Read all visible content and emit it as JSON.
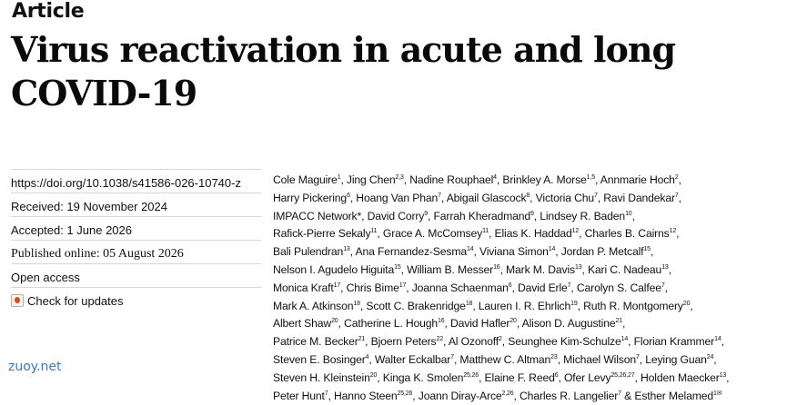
{
  "article_label": "Article",
  "title": "Virus reactivation in acute and long COVID-19",
  "meta": {
    "doi": "https://doi.org/10.1038/s41586-026-10740-z",
    "received": "Received: 19 November 2024",
    "accepted": "Accepted: 1 June 2026",
    "published": "Published online: 05 August 2026",
    "open_access": "Open access",
    "check_updates": "Check for updates"
  },
  "authors": [
    {
      "name": "Cole Maguire",
      "sup": "1"
    },
    {
      "name": "Jing Chen",
      "sup": "2,3"
    },
    {
      "name": "Nadine Rouphael",
      "sup": "4"
    },
    {
      "name": "Brinkley A. Morse",
      "sup": "1,5"
    },
    {
      "name": "Annmarie Hoch",
      "sup": "2"
    },
    {
      "name": "Harry Pickering",
      "sup": "6"
    },
    {
      "name": "Hoang Van Phan",
      "sup": "7"
    },
    {
      "name": "Abigail Glascock",
      "sup": "8"
    },
    {
      "name": "Victoria Chu",
      "sup": "7"
    },
    {
      "name": "Ravi Dandekar",
      "sup": "7"
    },
    {
      "name": "IMPACC Network*",
      "sup": ""
    },
    {
      "name": "David Corry",
      "sup": "9"
    },
    {
      "name": "Farrah Kheradmand",
      "sup": "9"
    },
    {
      "name": "Lindsey R. Baden",
      "sup": "10"
    },
    {
      "name": "Rafick-Pierre Sekaly",
      "sup": "11"
    },
    {
      "name": "Grace A. McComsey",
      "sup": "11"
    },
    {
      "name": "Elias K. Haddad",
      "sup": "12"
    },
    {
      "name": "Charles B. Cairns",
      "sup": "12"
    },
    {
      "name": "Bali Pulendran",
      "sup": "13"
    },
    {
      "name": "Ana Fernandez-Sesma",
      "sup": "14"
    },
    {
      "name": "Viviana Simon",
      "sup": "14"
    },
    {
      "name": "Jordan P. Metcalf",
      "sup": "15"
    },
    {
      "name": "Nelson I. Agudelo Higuita",
      "sup": "15"
    },
    {
      "name": "William B. Messer",
      "sup": "16"
    },
    {
      "name": "Mark M. Davis",
      "sup": "13"
    },
    {
      "name": "Kari C. Nadeau",
      "sup": "13"
    },
    {
      "name": "Monica Kraft",
      "sup": "17"
    },
    {
      "name": "Chris Bime",
      "sup": "17"
    },
    {
      "name": "Joanna Schaenman",
      "sup": "6"
    },
    {
      "name": "David Erle",
      "sup": "7"
    },
    {
      "name": "Carolyn S. Calfee",
      "sup": "7"
    },
    {
      "name": "Mark A. Atkinson",
      "sup": "18"
    },
    {
      "name": "Scott C. Brakenridge",
      "sup": "18"
    },
    {
      "name": "Lauren I. R. Ehrlich",
      "sup": "19"
    },
    {
      "name": "Ruth R. Montgomery",
      "sup": "20"
    },
    {
      "name": "Albert Shaw",
      "sup": "20"
    },
    {
      "name": "Catherine L. Hough",
      "sup": "16"
    },
    {
      "name": "David Hafler",
      "sup": "20"
    },
    {
      "name": "Alison D. Augustine",
      "sup": "21"
    },
    {
      "name": "Patrice M. Becker",
      "sup": "21"
    },
    {
      "name": "Bjoern Peters",
      "sup": "22"
    },
    {
      "name": "Al Ozonoff",
      "sup": "2"
    },
    {
      "name": "Seunghee Kim-Schulze",
      "sup": "14"
    },
    {
      "name": "Florian Krammer",
      "sup": "14"
    },
    {
      "name": "Steven E. Bosinger",
      "sup": "4"
    },
    {
      "name": "Walter Eckalbar",
      "sup": "7"
    },
    {
      "name": "Matthew C. Altman",
      "sup": "23"
    },
    {
      "name": "Michael Wilson",
      "sup": "7"
    },
    {
      "name": "Leying Guan",
      "sup": "24"
    },
    {
      "name": "Steven H. Kleinstein",
      "sup": "20"
    },
    {
      "name": "Kinga K. Smolen",
      "sup": "25,26"
    },
    {
      "name": "Elaine F. Reed",
      "sup": "6"
    },
    {
      "name": "Ofer Levy",
      "sup": "25,26,27"
    },
    {
      "name": "Holden Maecker",
      "sup": "13"
    },
    {
      "name": "Peter Hunt",
      "sup": "7"
    },
    {
      "name": "Hanno Steen",
      "sup": "25,26"
    },
    {
      "name": "Joann Diray-Arce",
      "sup": "2,26"
    },
    {
      "name": "Charles R. Langelier",
      "sup": "7"
    },
    {
      "name": "Esther Melamed",
      "sup": "1✉"
    }
  ],
  "author_line_breaks": [
    5,
    10,
    14,
    18,
    22,
    26,
    31,
    35,
    39,
    44,
    49,
    54
  ],
  "final_separator": " & ",
  "watermark": "zuoy.net"
}
